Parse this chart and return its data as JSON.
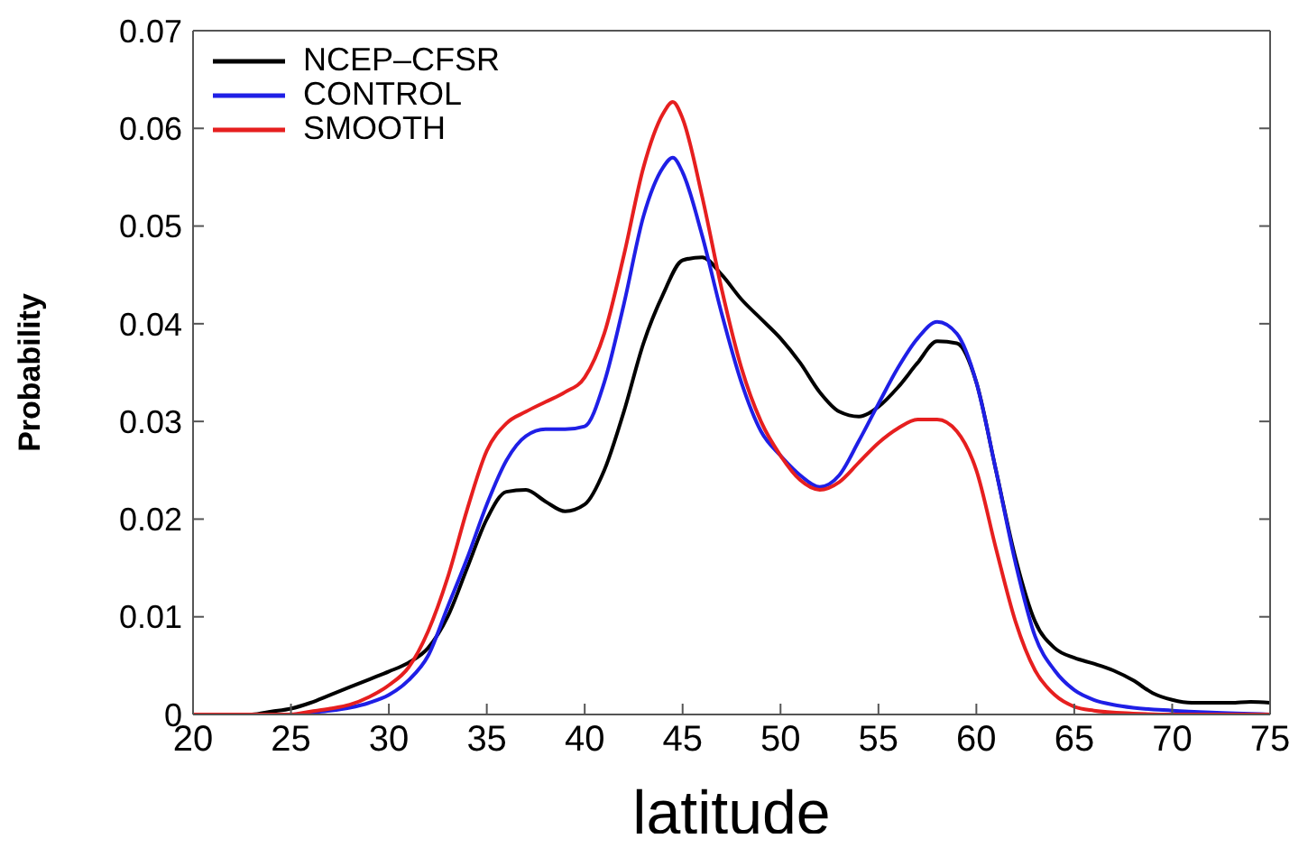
{
  "chart_data": {
    "type": "line",
    "xlabel": "latitude",
    "ylabel": "Probability",
    "xlim": [
      20,
      75
    ],
    "xticks": [
      20,
      25,
      30,
      35,
      40,
      45,
      50,
      55,
      60,
      65,
      70,
      75
    ],
    "ylim": [
      0,
      0.07
    ],
    "yticks": [
      0,
      0.01,
      0.02,
      0.03,
      0.04,
      0.05,
      0.06,
      0.07
    ],
    "grid": false,
    "legend": "top left",
    "marker": "none",
    "line_style": "solid",
    "series": [
      {
        "name": "NCEP–CFSR",
        "color": "#000000",
        "x": [
          20,
          22,
          23,
          24,
          25,
          26,
          27,
          28,
          29,
          30,
          31,
          32,
          33,
          34,
          35,
          36,
          37,
          38,
          39,
          40,
          41,
          42,
          43,
          44,
          45,
          46,
          47,
          48,
          49,
          50,
          51,
          52,
          53,
          54,
          55,
          56,
          57,
          58,
          59,
          60,
          61,
          62,
          63,
          64,
          65,
          66,
          67,
          68,
          69,
          70,
          71,
          72,
          73,
          74,
          75
        ],
        "values": [
          0,
          0,
          0,
          0.0003,
          0.0006,
          0.0012,
          0.002,
          0.0028,
          0.0036,
          0.0044,
          0.0053,
          0.0068,
          0.01,
          0.015,
          0.02,
          0.0228,
          0.023,
          0.0218,
          0.0208,
          0.0215,
          0.025,
          0.031,
          0.038,
          0.043,
          0.0465,
          0.0468,
          0.045,
          0.0425,
          0.0405,
          0.0385,
          0.036,
          0.033,
          0.031,
          0.0305,
          0.0315,
          0.0335,
          0.036,
          0.0382,
          0.038,
          0.034,
          0.025,
          0.016,
          0.0095,
          0.0068,
          0.0058,
          0.0052,
          0.0045,
          0.0035,
          0.0022,
          0.0015,
          0.0012,
          0.0012,
          0.0012,
          0.0013,
          0.0012
        ]
      },
      {
        "name": "CONTROL",
        "color": "#1f1fe6",
        "x": [
          20,
          25,
          26,
          27,
          28,
          29,
          30,
          31,
          32,
          33,
          34,
          35,
          36,
          37,
          38,
          39,
          40,
          41,
          42,
          43,
          44,
          44.5,
          45,
          46,
          47,
          48,
          49,
          50,
          51,
          52,
          53,
          54,
          55,
          56,
          57,
          58,
          59,
          60,
          61,
          62,
          63,
          64,
          65,
          66,
          67,
          68,
          70,
          72,
          75
        ],
        "values": [
          0,
          0,
          0.0002,
          0.0004,
          0.0007,
          0.0012,
          0.002,
          0.0035,
          0.006,
          0.011,
          0.016,
          0.0215,
          0.026,
          0.0285,
          0.0292,
          0.0292,
          0.0295,
          0.034,
          0.042,
          0.051,
          0.056,
          0.057,
          0.0555,
          0.049,
          0.041,
          0.034,
          0.029,
          0.0265,
          0.0245,
          0.0233,
          0.0245,
          0.028,
          0.0318,
          0.0355,
          0.0385,
          0.0402,
          0.039,
          0.034,
          0.025,
          0.0155,
          0.008,
          0.0045,
          0.0025,
          0.0015,
          0.001,
          0.0007,
          0.0004,
          0.0002,
          0
        ]
      },
      {
        "name": "SMOOTH",
        "color": "#e61f1f",
        "x": [
          20,
          25,
          26,
          27,
          28,
          29,
          30,
          31,
          32,
          33,
          34,
          35,
          36,
          37,
          38,
          39,
          40,
          41,
          42,
          43,
          44,
          44.5,
          45,
          46,
          47,
          48,
          49,
          50,
          51,
          52,
          53,
          54,
          55,
          56,
          57,
          58,
          59,
          60,
          61,
          62,
          63,
          64,
          65,
          66,
          68,
          70,
          75
        ],
        "values": [
          0,
          0,
          0.0003,
          0.0006,
          0.001,
          0.0018,
          0.003,
          0.0048,
          0.0085,
          0.014,
          0.021,
          0.027,
          0.0298,
          0.031,
          0.032,
          0.033,
          0.0345,
          0.039,
          0.047,
          0.056,
          0.0615,
          0.0627,
          0.061,
          0.053,
          0.0435,
          0.0355,
          0.03,
          0.0265,
          0.024,
          0.023,
          0.0238,
          0.0258,
          0.0278,
          0.0293,
          0.0302,
          0.0302,
          0.029,
          0.025,
          0.017,
          0.0095,
          0.0045,
          0.002,
          0.0008,
          0.0004,
          0.0001,
          0,
          0
        ]
      }
    ]
  }
}
